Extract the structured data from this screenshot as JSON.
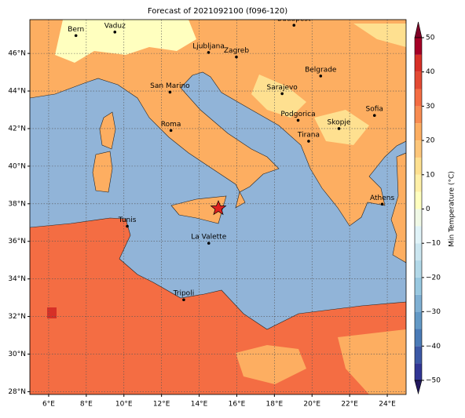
{
  "title": "Forecast of 2021092100 (f096-120)",
  "map": {
    "xlim": [
      5,
      25
    ],
    "ylim": [
      27.85,
      47.8
    ],
    "xticks": [
      {
        "value": 6,
        "label": "6°E"
      },
      {
        "value": 8,
        "label": "8°E"
      },
      {
        "value": 10,
        "label": "10°E"
      },
      {
        "value": 12,
        "label": "12°E"
      },
      {
        "value": 14,
        "label": "14°E"
      },
      {
        "value": 16,
        "label": "16°E"
      },
      {
        "value": 18,
        "label": "18°E"
      },
      {
        "value": 20,
        "label": "20°E"
      },
      {
        "value": 22,
        "label": "22°E"
      },
      {
        "value": 24,
        "label": "24°E"
      }
    ],
    "yticks": [
      {
        "value": 28,
        "label": "28°N"
      },
      {
        "value": 30,
        "label": "30°N"
      },
      {
        "value": 32,
        "label": "32°N"
      },
      {
        "value": 34,
        "label": "34°N"
      },
      {
        "value": 36,
        "label": "36°N"
      },
      {
        "value": 38,
        "label": "38°N"
      },
      {
        "value": 40,
        "label": "40°N"
      },
      {
        "value": 42,
        "label": "42°N"
      },
      {
        "value": 44,
        "label": "44°N"
      },
      {
        "value": 46,
        "label": "46°N"
      }
    ],
    "grid": true
  },
  "cities": [
    {
      "name": "Bern",
      "lon": 7.45,
      "lat": 46.95
    },
    {
      "name": "Vaduz",
      "lon": 9.52,
      "lat": 47.14
    },
    {
      "name": "Budapest",
      "lon": 19.04,
      "lat": 47.5
    },
    {
      "name": "Ljubljana",
      "lon": 14.5,
      "lat": 46.05
    },
    {
      "name": "Zagreb",
      "lon": 15.98,
      "lat": 45.81
    },
    {
      "name": "Belgrade",
      "lon": 20.46,
      "lat": 44.8
    },
    {
      "name": "San Marino",
      "lon": 12.45,
      "lat": 43.94
    },
    {
      "name": "Sarajevo",
      "lon": 18.41,
      "lat": 43.86
    },
    {
      "name": "Roma",
      "lon": 12.5,
      "lat": 41.9
    },
    {
      "name": "Podgorica",
      "lon": 19.26,
      "lat": 42.44
    },
    {
      "name": "Skopje",
      "lon": 21.43,
      "lat": 42.0
    },
    {
      "name": "Sofia",
      "lon": 23.32,
      "lat": 42.7
    },
    {
      "name": "Tirana",
      "lon": 19.82,
      "lat": 41.33
    },
    {
      "name": "Athens",
      "lon": 23.73,
      "lat": 37.98
    },
    {
      "name": "Tunis",
      "lon": 10.18,
      "lat": 36.8
    },
    {
      "name": "La Valette",
      "lon": 14.51,
      "lat": 35.9
    },
    {
      "name": "Tripoli",
      "lon": 13.18,
      "lat": 32.89
    }
  ],
  "colorbar": {
    "label": "Min Temperature (°C)",
    "clim": [
      -50,
      50
    ],
    "ticks": [
      {
        "value": -50,
        "label": "−50"
      },
      {
        "value": -40,
        "label": "−40"
      },
      {
        "value": -30,
        "label": "−30"
      },
      {
        "value": -20,
        "label": "−20"
      },
      {
        "value": -10,
        "label": "−10"
      },
      0,
      10,
      20,
      30,
      40,
      50
    ],
    "colors": [
      "#313695",
      "#3c59a6",
      "#4a7bb7",
      "#6399c6",
      "#7fb0d3",
      "#98c8e0",
      "#b2d8e8",
      "#cbe6f0",
      "#e0f3f8",
      "#f0f9e6",
      "#ffffbf",
      "#fff0a8",
      "#fee090",
      "#fdc67a",
      "#fdae61",
      "#f88c51",
      "#f46d43",
      "#e34a33",
      "#d73027",
      "#a50026"
    ],
    "extend_colors": [
      "#23195e",
      "#7f0026"
    ]
  }
}
